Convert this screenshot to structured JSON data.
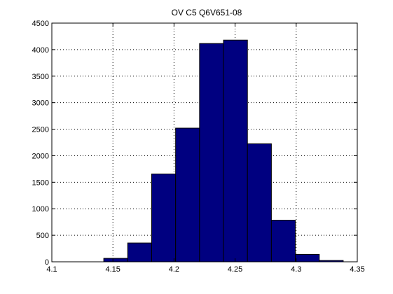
{
  "chart_data": {
    "type": "bar",
    "title": "OV C5 Q6V651-08",
    "xlabel": "",
    "ylabel": "",
    "xlim": [
      4.1,
      4.35
    ],
    "ylim": [
      0,
      4500
    ],
    "grid": true,
    "bar_color": "#000080",
    "bar_edge_color": "#000000",
    "bin_edges": [
      4.1425,
      4.1621,
      4.1817,
      4.2013,
      4.2209,
      4.2405,
      4.2601,
      4.2797,
      4.2993,
      4.3189,
      4.3385
    ],
    "values": [
      65,
      355,
      1655,
      2520,
      4115,
      4180,
      2225,
      785,
      140,
      25
    ],
    "x_ticks": [
      4.1,
      4.15,
      4.2,
      4.25,
      4.3,
      4.35
    ],
    "x_tick_labels": [
      "4.1",
      "4.15",
      "4.2",
      "4.25",
      "4.3",
      "4.35"
    ],
    "y_ticks": [
      0,
      500,
      1000,
      1500,
      2000,
      2500,
      3000,
      3500,
      4000,
      4500
    ],
    "y_tick_labels": [
      "0",
      "500",
      "1000",
      "1500",
      "2000",
      "2500",
      "3000",
      "3500",
      "4000",
      "4500"
    ]
  }
}
